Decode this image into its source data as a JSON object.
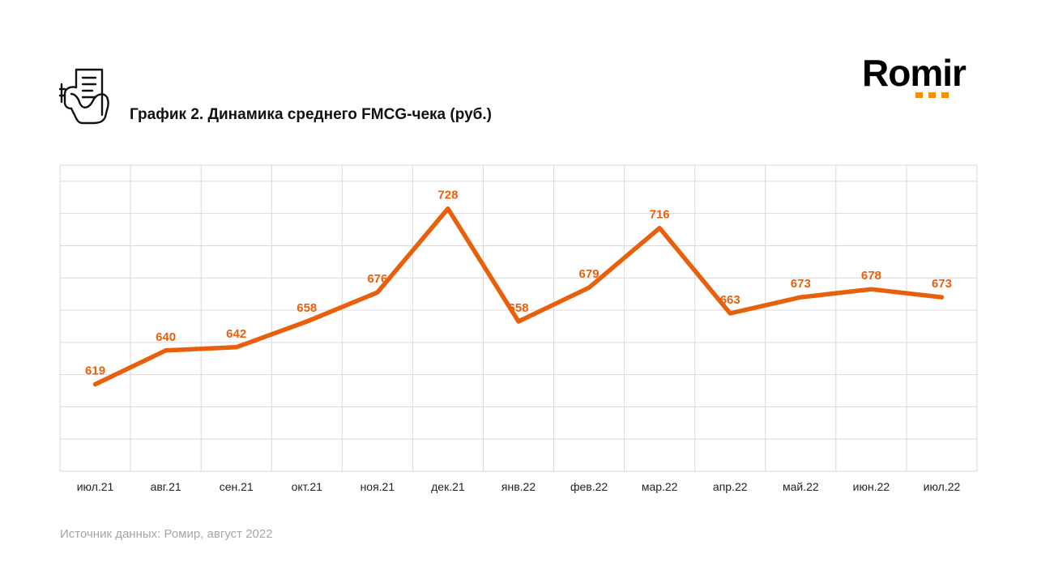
{
  "header": {
    "title": "График 2. Динамика среднего FMCG-чека (руб.)",
    "icon": "receipt-hand-icon"
  },
  "logo": {
    "text": "Romir",
    "dot_color": "#f39200"
  },
  "footer": {
    "source": "Источник данных: Ромир, август 2022"
  },
  "chart_data": {
    "type": "line",
    "title": "График 2. Динамика среднего FMCG-чека (руб.)",
    "categories": [
      "июл.21",
      "авг.21",
      "сен.21",
      "окт.21",
      "ноя.21",
      "дек.21",
      "янв.22",
      "фев.22",
      "мар.22",
      "апр.22",
      "май.22",
      "июн.22",
      "июл.22"
    ],
    "series": [
      {
        "values": [
          619,
          640,
          642,
          658,
          676,
          728,
          658,
          679,
          716,
          663,
          673,
          678,
          673
        ],
        "color": "#e8600c"
      }
    ],
    "data_labels": [
      "619",
      "640",
      "642",
      "658",
      "676",
      "728",
      "658",
      "679",
      "716",
      "663",
      "673",
      "678",
      "673"
    ],
    "ylim": [
      565,
      755
    ],
    "y_gridlines": [
      565,
      585,
      605,
      625,
      645,
      665,
      685,
      705,
      725,
      745
    ],
    "y_axis_labels_shown": false,
    "grid": true,
    "legend": "none"
  }
}
